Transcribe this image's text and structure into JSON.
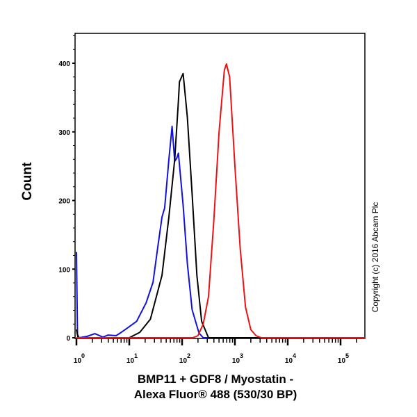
{
  "chart_data": {
    "type": "line",
    "title": "",
    "xlabel_line1": "BMP11 + GDF8 / Myostatin -",
    "xlabel_line2": "Alexa Fluor® 488 (530/30 BP)",
    "ylabel": "Count",
    "xscale": "log10",
    "xlim_log10": [
      0,
      5.47
    ],
    "ylim": [
      0,
      450
    ],
    "y_ticks": [
      0,
      100,
      200,
      300,
      400
    ],
    "x_tick_exponents": [
      "0",
      "1",
      "2",
      "3",
      "4",
      "5"
    ],
    "x_tick_base": "10",
    "grid": false,
    "series": [
      {
        "name": "blue",
        "color": "#1010e0",
        "log_x": [
          0,
          0.02,
          0.05,
          0.2,
          0.35,
          0.5,
          0.6,
          0.75,
          0.85,
          0.96,
          1.14,
          1.32,
          1.45,
          1.54,
          1.62,
          1.67,
          1.75,
          1.81,
          1.86,
          1.9,
          1.93,
          2.02,
          2.1,
          2.19,
          2.32,
          2.4,
          5.47
        ],
        "y": [
          125,
          5,
          0,
          2,
          6,
          1,
          4,
          3,
          8,
          14,
          24,
          51,
          81,
          132,
          176,
          189,
          260,
          308,
          257,
          262,
          269,
          193,
          108,
          41,
          7,
          0,
          0
        ]
      },
      {
        "name": "black",
        "color": "#000000",
        "log_x": [
          0,
          0.03,
          0.1,
          1.0,
          1.2,
          1.4,
          1.62,
          1.75,
          1.86,
          1.93,
          1.95,
          2.02,
          2.1,
          2.19,
          2.28,
          2.37,
          2.5,
          5.47
        ],
        "y": [
          12,
          0,
          0,
          0,
          8,
          27,
          91,
          176,
          260,
          345,
          373,
          385,
          321,
          210,
          91,
          24,
          0,
          0
        ]
      },
      {
        "name": "red",
        "color": "#ee1111",
        "log_x": [
          0,
          2.2,
          2.3,
          2.4,
          2.5,
          2.6,
          2.7,
          2.8,
          2.84,
          2.9,
          3.0,
          3.1,
          3.2,
          3.3,
          3.4,
          3.5,
          5.47
        ],
        "y": [
          0,
          0,
          3,
          20,
          60,
          170,
          300,
          390,
          399,
          380,
          250,
          130,
          45,
          12,
          3,
          0,
          0
        ]
      }
    ]
  },
  "copyright": "Copyright (c) 2016 Abcam Plc"
}
